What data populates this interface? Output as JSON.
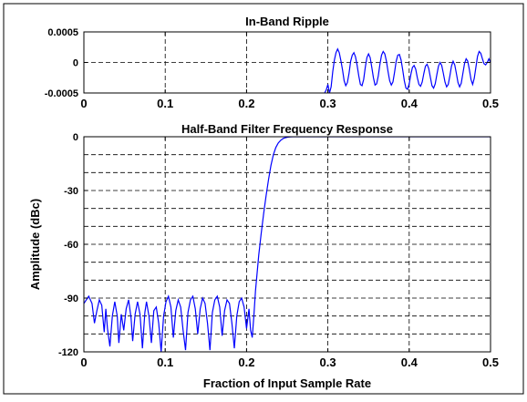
{
  "chart_data": [
    {
      "type": "line",
      "title": "In-Band Ripple",
      "xlabel": "",
      "ylabel": "",
      "xlim": [
        0,
        0.5
      ],
      "ylim": [
        -0.0005,
        0.0005
      ],
      "x_ticks": [
        0,
        0.1,
        0.2,
        0.3,
        0.4,
        0.5
      ],
      "x_tick_labels": [
        "0",
        "0.1",
        "0.2",
        "0.3",
        "0.4",
        "0.5"
      ],
      "y_ticks": [
        0.0005,
        0,
        -0.0005
      ],
      "y_tick_labels": [
        "0.0005",
        "0",
        "-0.0005"
      ],
      "grid": true,
      "grid_style": "dashed",
      "line_color": "#0000ff",
      "series": [
        {
          "x": [
            0.296,
            0.298,
            0.3,
            0.302,
            0.304,
            0.306,
            0.308,
            0.31,
            0.312,
            0.314,
            0.316,
            0.318,
            0.32,
            0.322,
            0.324,
            0.326,
            0.328,
            0.33,
            0.332,
            0.334,
            0.336,
            0.338,
            0.34,
            0.342,
            0.344,
            0.346,
            0.348,
            0.35,
            0.352,
            0.354,
            0.356,
            0.358,
            0.36,
            0.362,
            0.364,
            0.366,
            0.368,
            0.37,
            0.372,
            0.374,
            0.376,
            0.378,
            0.38,
            0.382,
            0.384,
            0.386,
            0.388,
            0.39,
            0.392,
            0.394,
            0.396,
            0.398,
            0.4,
            0.402,
            0.404,
            0.406,
            0.408,
            0.41,
            0.412,
            0.414,
            0.416,
            0.418,
            0.42,
            0.422,
            0.424,
            0.426,
            0.428,
            0.43,
            0.432,
            0.434,
            0.436,
            0.438,
            0.44,
            0.442,
            0.444,
            0.446,
            0.448,
            0.45,
            0.452,
            0.454,
            0.456,
            0.458,
            0.46,
            0.462,
            0.464,
            0.466,
            0.468,
            0.47,
            0.472,
            0.474,
            0.476,
            0.478,
            0.48,
            0.482,
            0.484,
            0.486,
            0.488,
            0.49,
            0.492,
            0.494,
            0.496,
            0.498,
            0.5
          ],
          "y": [
            -0.0005,
            -0.00045,
            -0.00036,
            -0.0005,
            -0.0004,
            -0.00015,
            4e-05,
            0.00016,
            0.00022,
            0.00016,
            3e-05,
            -0.00012,
            -0.0003,
            -0.00038,
            -0.00033,
            -0.00018,
            2e-05,
            0.00012,
            0.00016,
            9e-05,
            -5e-05,
            -0.00022,
            -0.00036,
            -0.00038,
            -0.00028,
            -8e-05,
            8e-05,
            0.00014,
            8e-05,
            -8e-05,
            -0.00025,
            -0.00037,
            -0.00035,
            -0.00022,
            -3e-05,
            0.00012,
            0.00018,
            0.00014,
            2e-05,
            -0.00015,
            -0.0003,
            -0.00037,
            -0.00032,
            -0.00016,
            2e-05,
            0.00012,
            0.00013,
            4e-05,
            -0.00012,
            -0.0003,
            -0.00042,
            -0.00044,
            -0.00035,
            -0.0002,
            -8e-05,
            -5e-05,
            -0.00011,
            -0.00025,
            -0.00036,
            -0.00039,
            -0.00032,
            -0.00018,
            -6e-05,
            -3e-05,
            -0.0001,
            -0.00024,
            -0.00038,
            -0.00042,
            -0.00035,
            -0.0002,
            -6e-05,
            0.0,
            -5e-05,
            -0.00018,
            -0.00032,
            -0.0004,
            -0.00036,
            -0.00022,
            -6e-05,
            2e-05,
            -4e-05,
            -0.00018,
            -0.00033,
            -0.0004,
            -0.00034,
            -0.00018,
            -2e-05,
            6e-05,
            2e-05,
            -0.00012,
            -0.00028,
            -0.00036,
            -0.00026,
            -8e-05,
            0.0001,
            0.00018,
            0.00015,
            6e-05,
            -2e-05,
            -4e-05,
            0.0,
            6e-05,
            0.0
          ]
        }
      ]
    },
    {
      "type": "line",
      "title": "Half-Band Filter Frequency Response",
      "xlabel": "Fraction of Input Sample Rate",
      "ylabel": "Amplitude (dBc)",
      "xlim": [
        0,
        0.5
      ],
      "ylim": [
        -120,
        0
      ],
      "x_ticks": [
        0,
        0.1,
        0.2,
        0.3,
        0.4,
        0.5
      ],
      "x_tick_labels": [
        "0",
        "0.1",
        "0.2",
        "0.3",
        "0.4",
        "0.5"
      ],
      "y_ticks": [
        0,
        -30,
        -60,
        -90,
        -120
      ],
      "y_tick_labels": [
        "0",
        "-30",
        "-60",
        "-90",
        "-120"
      ],
      "y_grid_step": 10,
      "grid": true,
      "grid_style": "dashed",
      "line_color": "#0000ff",
      "series": [
        {
          "x": [
            0.0,
            0.003,
            0.006,
            0.01,
            0.013,
            0.016,
            0.019,
            0.022,
            0.025,
            0.027,
            0.029,
            0.032,
            0.035,
            0.038,
            0.041,
            0.043,
            0.046,
            0.049,
            0.052,
            0.055,
            0.058,
            0.06,
            0.063,
            0.066,
            0.069,
            0.072,
            0.075,
            0.077,
            0.08,
            0.083,
            0.086,
            0.089,
            0.092,
            0.095,
            0.098,
            0.101,
            0.104,
            0.107,
            0.11,
            0.113,
            0.116,
            0.119,
            0.122,
            0.125,
            0.128,
            0.131,
            0.134,
            0.137,
            0.14,
            0.143,
            0.146,
            0.149,
            0.152,
            0.155,
            0.158,
            0.161,
            0.164,
            0.167,
            0.17,
            0.173,
            0.176,
            0.179,
            0.182,
            0.185,
            0.188,
            0.191,
            0.194,
            0.197,
            0.2,
            0.203,
            0.205,
            0.207,
            0.209,
            0.211,
            0.213,
            0.215,
            0.218,
            0.221,
            0.224,
            0.227,
            0.23,
            0.233,
            0.236,
            0.239,
            0.242,
            0.245,
            0.248,
            0.251,
            0.254,
            0.257,
            0.26,
            0.263,
            0.266,
            0.27,
            0.275,
            0.28,
            0.29,
            0.3,
            0.35,
            0.4,
            0.45,
            0.5
          ],
          "y": [
            -93,
            -91,
            -89,
            -93,
            -104,
            -97,
            -91,
            -94,
            -109,
            -96,
            -107,
            -117,
            -100,
            -92,
            -100,
            -115,
            -99,
            -108,
            -96,
            -91,
            -101,
            -114,
            -99,
            -92,
            -99,
            -118,
            -98,
            -92,
            -100,
            -115,
            -97,
            -95,
            -104,
            -120,
            -100,
            -92,
            -89,
            -95,
            -112,
            -97,
            -91,
            -95,
            -108,
            -119,
            -98,
            -91,
            -89,
            -96,
            -110,
            -96,
            -90,
            -93,
            -104,
            -119,
            -98,
            -91,
            -89,
            -95,
            -111,
            -97,
            -91,
            -93,
            -104,
            -118,
            -100,
            -92,
            -90,
            -95,
            -107,
            -96,
            -108,
            -112,
            -100,
            -86,
            -76,
            -66,
            -54,
            -43,
            -33,
            -24,
            -16,
            -10,
            -6,
            -3.5,
            -2,
            -1,
            -0.5,
            -0.2,
            -0.1,
            0,
            0,
            0,
            0,
            0,
            0,
            0,
            0,
            0,
            0,
            0,
            0,
            0
          ]
        }
      ]
    }
  ]
}
